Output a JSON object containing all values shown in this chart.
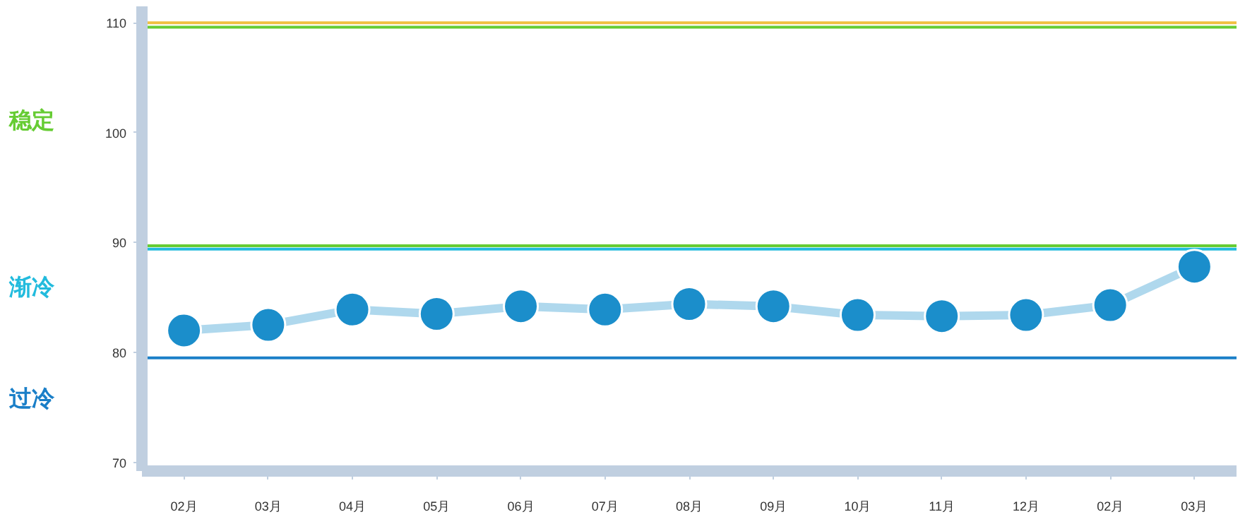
{
  "chart_data": {
    "type": "line",
    "categories": [
      "02月",
      "03月",
      "04月",
      "05月",
      "06月",
      "07月",
      "08月",
      "09月",
      "10月",
      "11月",
      "12月",
      "02月",
      "03月"
    ],
    "series": [
      {
        "color": "#1b8ecb",
        "values": [
          82.0,
          82.5,
          83.9,
          83.5,
          84.2,
          83.9,
          84.4,
          84.2,
          83.4,
          83.3,
          83.4,
          84.3,
          87.8
        ]
      }
    ],
    "ylim": [
      69.2,
      111.5
    ],
    "yticks": [
      70,
      80,
      90,
      100,
      110
    ],
    "grid": false,
    "marker": "circle",
    "line_style": "solid",
    "ref_lines": [
      {
        "axis": "y",
        "value": 110,
        "color": "#f0c040"
      },
      {
        "axis": "y",
        "value": 109.6,
        "color": "#66cc33",
        "label": "稳定"
      },
      {
        "axis": "y",
        "value": 89.7,
        "color": "#66cc33"
      },
      {
        "axis": "y",
        "value": 89.4,
        "color": "#22bbdd",
        "label": "渐冷"
      },
      {
        "axis": "y",
        "value": 79.5,
        "color": "#1a7fc8",
        "label": "过冷"
      }
    ]
  }
}
